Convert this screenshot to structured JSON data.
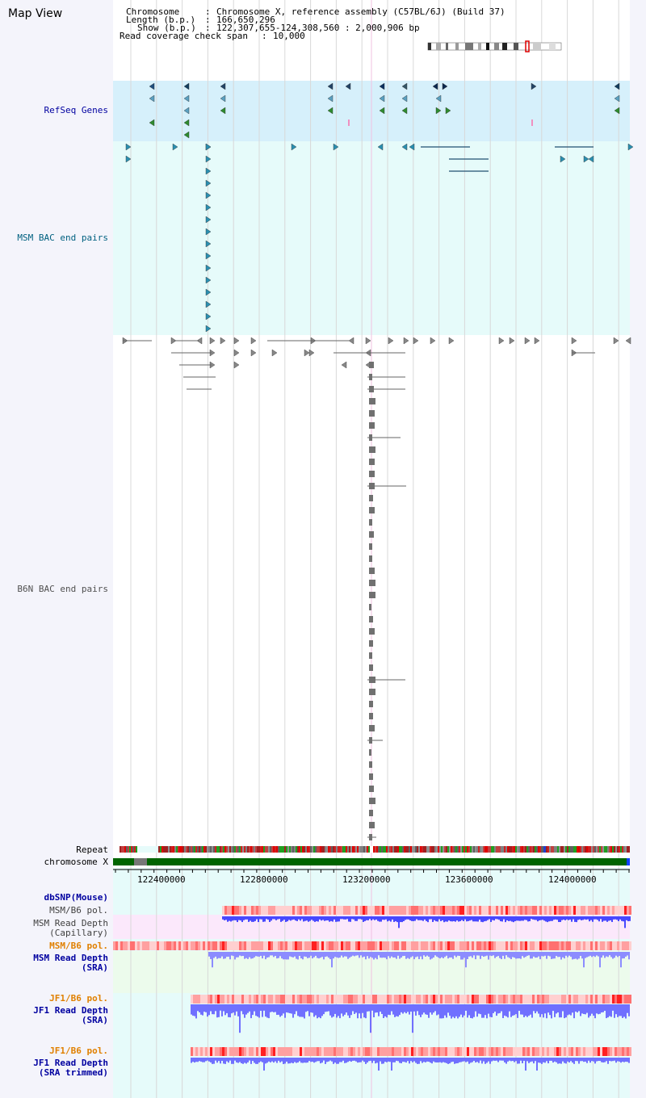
{
  "title": "Map View",
  "info": {
    "chromosome_label": "Chromosome",
    "chromosome_value": "Chromosome X, reference assembly (C57BL/6J) (Build 37)",
    "length_label": "Length (b.p.)",
    "length_value": "166,650,296",
    "show_label": "Show (b.p.)",
    "show_value": "122,307,655-124,308,560 : 2,000,906 bp",
    "coverage_label": "Read coverage check span",
    "coverage_value": "10,000"
  },
  "tracks": {
    "refseq": "RefSeq Genes",
    "msm_bac": "MSM BAC end pairs",
    "b6n_bac": "B6N BAC end pairs",
    "repeat": "Repeat",
    "chromosome": "chromosome X",
    "dbsnp": "dbSNP(Mouse)",
    "msm_b6_pol_1": "MSM/B6 pol.",
    "msm_read_depth_cap_1": "MSM Read Depth",
    "msm_read_depth_cap_2": "(Capillary)",
    "msm_b6_pol_2": "MSM/B6 pol.",
    "msm_read_depth_sra_1": "MSM Read Depth",
    "msm_read_depth_sra_2": "(SRA)",
    "jf1_b6_pol_1": "JF1/B6 pol.",
    "jf1_read_depth_sra_1": "JF1 Read Depth",
    "jf1_read_depth_sra_2": "(SRA)",
    "jf1_b6_pol_2": "JF1/B6 pol.",
    "jf1_read_depth_trim_1": "JF1 Read Depth",
    "jf1_read_depth_trim_2": "(SRA trimmed)"
  },
  "ruler": {
    "ticks": [
      "122400000",
      "122800000",
      "123200000",
      "123600000",
      "124000000"
    ]
  },
  "colors": {
    "refseq_bg": "#d6f0fb",
    "msm_bac_bg": "#e6fbfa",
    "label_blue": "#0000a0",
    "label_teal": "#006080",
    "label_orange": "#e08000",
    "chromosome_green": "#006400",
    "depth_blue": "#4040ff",
    "pol_red": "#ff4040"
  }
}
